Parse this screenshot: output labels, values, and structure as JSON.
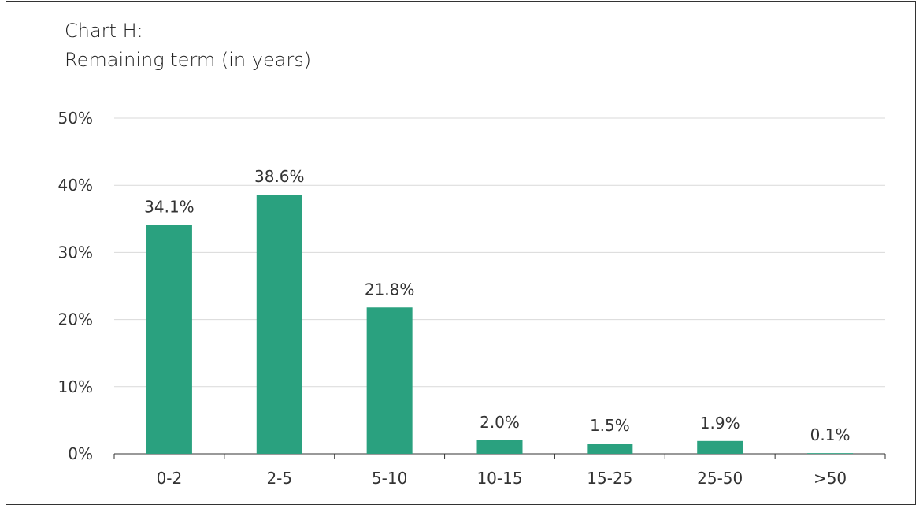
{
  "chart_data": {
    "type": "bar",
    "title": "Chart H:",
    "subtitle": "Remaining term (in years)",
    "categories": [
      "0-2",
      "2-5",
      "5-10",
      "10-15",
      "15-25",
      "25-50",
      ">50"
    ],
    "values": [
      34.1,
      38.6,
      21.8,
      2.0,
      1.5,
      1.9,
      0.1
    ],
    "value_labels": [
      "34.1%",
      "38.6%",
      "21.8%",
      "2.0%",
      "1.5%",
      "1.9%",
      "0.1%"
    ],
    "xlabel": "",
    "ylabel": "",
    "ylim": [
      0,
      50
    ],
    "yticks": [
      0,
      10,
      20,
      30,
      40,
      50
    ],
    "ytick_labels": [
      "0%",
      "10%",
      "20%",
      "30%",
      "40%",
      "50%"
    ],
    "grid": true,
    "bar_color": "#2aa17f",
    "grid_color": "#d9d9d9",
    "axis_color": "#333333"
  }
}
